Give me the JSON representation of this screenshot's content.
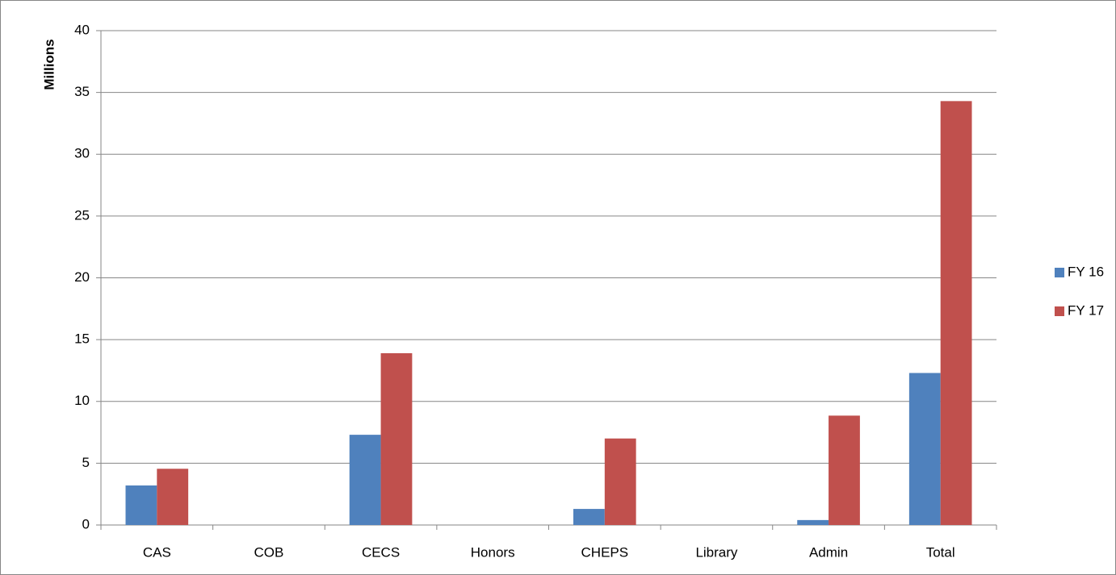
{
  "chart_data": {
    "type": "bar",
    "ylabel": "Millions",
    "categories": [
      "CAS",
      "COB",
      "CECS",
      "Honors",
      "CHEPS",
      "Library",
      "Admin",
      "Total"
    ],
    "series": [
      {
        "name": "FY 16",
        "color": "#4f81bd",
        "values": [
          3.2,
          0,
          7.3,
          0,
          1.3,
          0,
          0.4,
          12.3
        ]
      },
      {
        "name": "FY 17",
        "color": "#c0504d",
        "values": [
          4.55,
          0,
          13.9,
          0,
          7.0,
          0,
          8.85,
          34.3
        ]
      }
    ],
    "ylim": [
      0,
      40
    ],
    "yticks": [
      0,
      5,
      10,
      15,
      20,
      25,
      30,
      35,
      40
    ],
    "grid": true,
    "legend": "right"
  }
}
